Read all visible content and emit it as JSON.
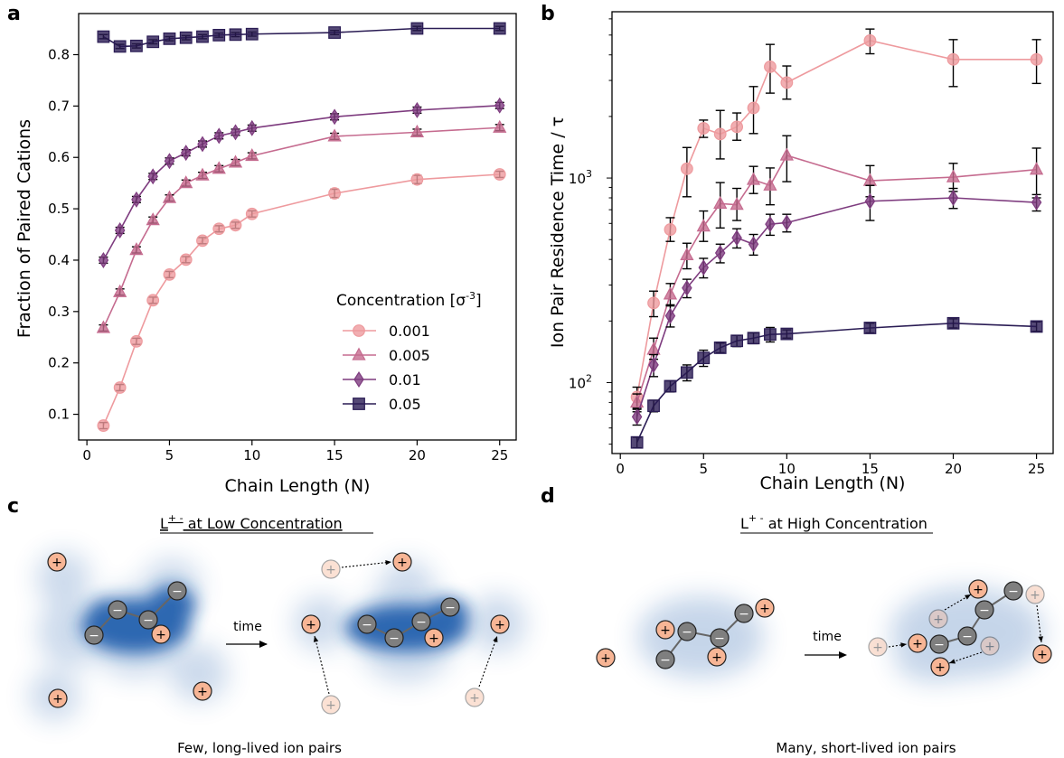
{
  "panel_labels": {
    "a": "a",
    "b": "b",
    "c": "c",
    "d": "d"
  },
  "colors": {
    "0.001": "#ee9a9e",
    "0.005": "#c56b8f",
    "0.01": "#7e3c7f",
    "0.05": "#2a1c54",
    "ion_pos": "#f7b595",
    "ion_neg": "#7f7f7f",
    "cloud": "#1f5cab"
  },
  "chart_data": [
    {
      "id": "a",
      "type": "line",
      "xlabel": "Chain Length (N)",
      "ylabel": "Fraction of Paired Cations",
      "xticks": [
        0,
        5,
        10,
        15,
        20,
        25
      ],
      "yticks": [
        0.1,
        0.2,
        0.3,
        0.4,
        0.5,
        0.6,
        0.7,
        0.8
      ],
      "xlim": [
        -0.5,
        26
      ],
      "ylim": [
        0.05,
        0.88
      ],
      "yscale": "linear",
      "legend_title": "Concentration [σ",
      "legend_title_sup": "-3",
      "legend_title_end": "]",
      "legend_position": "lower-right",
      "x": [
        1,
        2,
        3,
        4,
        5,
        6,
        7,
        8,
        9,
        10,
        15,
        20,
        25
      ],
      "series": [
        {
          "name": "0.001",
          "marker": "circle",
          "values": [
            0.078,
            0.152,
            0.242,
            0.322,
            0.372,
            0.401,
            0.438,
            0.461,
            0.468,
            0.49,
            0.53,
            0.557,
            0.567
          ],
          "err": [
            0.006,
            0.006,
            0.006,
            0.006,
            0.006,
            0.006,
            0.006,
            0.006,
            0.006,
            0.006,
            0.008,
            0.008,
            0.006
          ]
        },
        {
          "name": "0.005",
          "marker": "triangle",
          "values": [
            0.268,
            0.338,
            0.42,
            0.478,
            0.521,
            0.55,
            0.565,
            0.578,
            0.59,
            0.603,
            0.641,
            0.649,
            0.658
          ],
          "err": [
            0.006,
            0.006,
            0.006,
            0.006,
            0.006,
            0.006,
            0.006,
            0.006,
            0.006,
            0.006,
            0.006,
            0.006,
            0.006
          ]
        },
        {
          "name": "0.01",
          "marker": "diamond",
          "values": [
            0.4,
            0.458,
            0.518,
            0.563,
            0.593,
            0.609,
            0.626,
            0.642,
            0.649,
            0.657,
            0.679,
            0.692,
            0.701
          ],
          "err": [
            0.006,
            0.006,
            0.006,
            0.006,
            0.006,
            0.006,
            0.006,
            0.006,
            0.006,
            0.006,
            0.006,
            0.006,
            0.006
          ]
        },
        {
          "name": "0.05",
          "marker": "square",
          "values": [
            0.835,
            0.816,
            0.817,
            0.825,
            0.831,
            0.833,
            0.835,
            0.838,
            0.839,
            0.84,
            0.843,
            0.851,
            0.851
          ],
          "err": [
            0.004,
            0.004,
            0.004,
            0.004,
            0.004,
            0.004,
            0.004,
            0.004,
            0.004,
            0.004,
            0.004,
            0.004,
            0.004
          ]
        }
      ]
    },
    {
      "id": "b",
      "type": "line",
      "xlabel": "Chain Length (N)",
      "ylabel": "Ion Pair Residence Time / τ",
      "xticks": [
        0,
        5,
        10,
        15,
        20,
        25
      ],
      "yticks_major": [
        100,
        1000
      ],
      "yticks_major_labels": [
        [
          "10",
          "2"
        ],
        [
          "10",
          "3"
        ]
      ],
      "ylim": [
        45,
        6500
      ],
      "xlim": [
        -0.5,
        26
      ],
      "yscale": "log",
      "x": [
        1,
        2,
        3,
        4,
        5,
        6,
        7,
        8,
        9,
        10,
        15,
        20,
        25
      ],
      "series": [
        {
          "name": "0.001",
          "marker": "circle",
          "values": [
            85,
            245,
            560,
            1110,
            1750,
            1640,
            1780,
            2200,
            3500,
            2930,
            4700,
            3800,
            3800
          ],
          "err_lo": [
            10,
            35,
            70,
            300,
            170,
            400,
            250,
            550,
            900,
            500,
            650,
            1000,
            900
          ],
          "err_hi": [
            10,
            35,
            80,
            300,
            170,
            500,
            300,
            600,
            1000,
            600,
            650,
            950,
            950
          ]
        },
        {
          "name": "0.005",
          "marker": "triangle",
          "values": [
            80,
            145,
            270,
            420,
            580,
            750,
            740,
            980,
            920,
            1290,
            970,
            1010,
            1100
          ],
          "err_lo": [
            8,
            15,
            30,
            60,
            90,
            180,
            120,
            140,
            180,
            330,
            160,
            150,
            300
          ],
          "err_hi": [
            8,
            20,
            35,
            60,
            110,
            200,
            150,
            160,
            200,
            320,
            180,
            170,
            300
          ]
        },
        {
          "name": "0.01",
          "marker": "diamond",
          "values": [
            68,
            122,
            212,
            290,
            365,
            430,
            510,
            475,
            595,
            605,
            770,
            800,
            760
          ],
          "err_lo": [
            6,
            15,
            25,
            30,
            40,
            45,
            55,
            55,
            70,
            60,
            150,
            90,
            70
          ],
          "err_hi": [
            6,
            15,
            25,
            30,
            40,
            45,
            55,
            55,
            70,
            60,
            150,
            90,
            70
          ]
        },
        {
          "name": "0.05",
          "marker": "square",
          "values": [
            51,
            77,
            96,
            112,
            132,
            148,
            160,
            165,
            172,
            173,
            185,
            195,
            188
          ],
          "err_lo": [
            3,
            5,
            6,
            10,
            12,
            8,
            10,
            10,
            14,
            8,
            10,
            10,
            10
          ],
          "err_hi": [
            3,
            5,
            6,
            10,
            12,
            8,
            10,
            10,
            14,
            8,
            10,
            10,
            10
          ]
        }
      ]
    }
  ],
  "schematic": {
    "c": {
      "title": "L",
      "title_sup": "+ -",
      "title_rest": " at Low Concentration",
      "time_label": "time",
      "caption": "Few, long-lived ion pairs"
    },
    "d": {
      "title": "L",
      "title_sup": "+ -",
      "title_rest": " at High Concentration",
      "time_label": "time",
      "caption": "Many, short-lived ion pairs"
    },
    "plus": "+",
    "minus": "−"
  }
}
